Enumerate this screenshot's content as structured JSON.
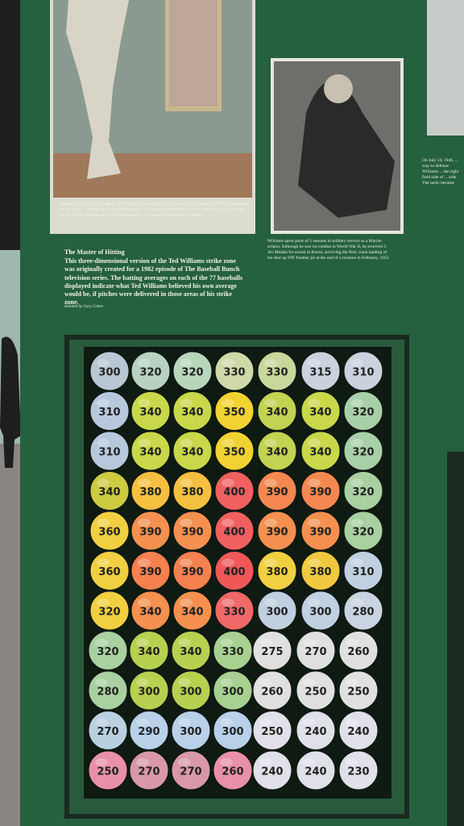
{
  "left_photo": {
    "caption": "Boston Red Sox hitting legend Ted Williams created this iconic strike zone diagram, which first appeared in the July 8, 1968, issue of Sports Illustrated. The image gained further renown when it later graced the cover of Ted Williams and John Underwood's 1971 book The Science of Hitting."
  },
  "right_photo": {
    "caption": "Williams spent parts of 5 seasons in military service as a Marine aviator. Although he saw no combat in World War II, he received 3 Air Medals for action in Korea, surviving the fiery crash landing of his shot up F9F Panther jet at the end of a mission in February, 1953."
  },
  "edge_caption": "On July 14, 1946, ... way to defense Williams ... the right field side of ... side. The tactic became",
  "panel": {
    "title": "The Master of Hitting",
    "body": "This three-dimensional version of the Ted Williams strike zone was originally created for a 1982 episode of The Baseball Bunch television series. The batting averages on each of the 77 baseballs displayed indicate what Ted Williams believed his own average would be, if pitches were delivered in those areas of his strike zone.",
    "credit": "donated by Gary Cohen"
  },
  "balls": [
    {
      "values": [
        300,
        320,
        320,
        330,
        330,
        315,
        310
      ],
      "colors": [
        "#b9c6d4",
        "#b8d2c2",
        "#b8d6bb",
        "#cfd8a8",
        "#c8d89a",
        "#cad2de",
        "#cad2de"
      ]
    },
    {
      "values": [
        310,
        340,
        340,
        350,
        340,
        340,
        320
      ],
      "colors": [
        "#b8c8dc",
        "#c8d84a",
        "#c8d84a",
        "#f2d232",
        "#c2d252",
        "#c8d84a",
        "#a8d0a8"
      ]
    },
    {
      "values": [
        310,
        340,
        340,
        350,
        340,
        340,
        320
      ],
      "colors": [
        "#b8c8dc",
        "#c8d84a",
        "#c8d84a",
        "#f2d232",
        "#c2d252",
        "#c8d84a",
        "#a8d0a8"
      ]
    },
    {
      "values": [
        340,
        380,
        380,
        400,
        390,
        390,
        320
      ],
      "colors": [
        "#cccb42",
        "#f5c040",
        "#f5c040",
        "#f06060",
        "#f58850",
        "#f58850",
        "#a8d0a0"
      ]
    },
    {
      "values": [
        360,
        390,
        390,
        400,
        390,
        390,
        320
      ],
      "colors": [
        "#f0d040",
        "#f59050",
        "#f59050",
        "#f06060",
        "#f59050",
        "#f59050",
        "#a8d0a0"
      ]
    },
    {
      "values": [
        360,
        390,
        390,
        400,
        380,
        380,
        310
      ],
      "colors": [
        "#f0d040",
        "#f58050",
        "#f58050",
        "#f05858",
        "#f0d040",
        "#f0c840",
        "#c0d0e0"
      ]
    },
    {
      "values": [
        320,
        340,
        340,
        330,
        300,
        300,
        280
      ],
      "colors": [
        "#f0d040",
        "#f59050",
        "#f59050",
        "#f06868",
        "#c0d0e0",
        "#c0d0e0",
        "#c8d4e0"
      ]
    },
    {
      "values": [
        320,
        340,
        340,
        330,
        275,
        270,
        260
      ],
      "colors": [
        "#a8d0a0",
        "#b8d050",
        "#b8d050",
        "#a8d090",
        "#e0e0e0",
        "#e0e0e0",
        "#e0e0e0"
      ]
    },
    {
      "values": [
        280,
        300,
        300,
        300,
        260,
        250,
        250
      ],
      "colors": [
        "#a8d0a0",
        "#b8d050",
        "#b8d050",
        "#a8d090",
        "#e0e0e0",
        "#e0e0e0",
        "#e0e0e0"
      ]
    },
    {
      "values": [
        270,
        290,
        300,
        300,
        250,
        240,
        240
      ],
      "colors": [
        "#b8d0e0",
        "#b8d0e8",
        "#b8d0e8",
        "#b8d0e8",
        "#e0e0e8",
        "#e0e0e8",
        "#e0e0e8"
      ]
    },
    {
      "values": [
        250,
        270,
        270,
        260,
        240,
        240,
        230
      ],
      "colors": [
        "#e890a8",
        "#d898a8",
        "#d898a8",
        "#e890a8",
        "#e0e0e8",
        "#e0e0e8",
        "#e0e0e8"
      ]
    }
  ]
}
